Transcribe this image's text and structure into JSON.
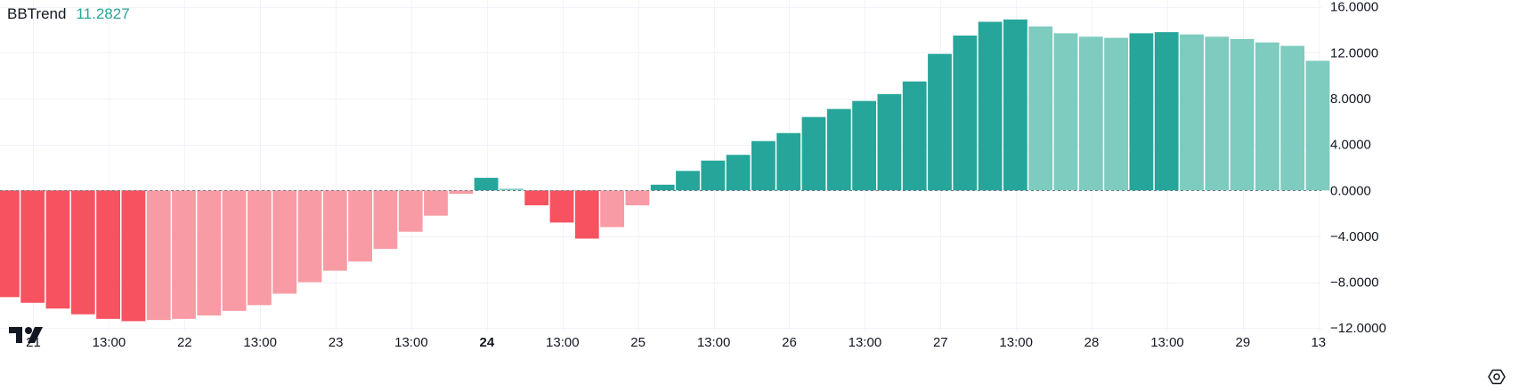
{
  "indicator": {
    "name": "BBTrend",
    "value": "11.2827"
  },
  "colors": {
    "positive_strong": "#26a69a",
    "positive_weak": "#7ecbbf",
    "negative_strong": "#f7525f",
    "negative_weak": "#f99ba4",
    "zero_line": "#787b86",
    "grid": "#f0f3fa",
    "axis_text": "#131722"
  },
  "icons": {
    "logo": "tradingview-logo-icon",
    "settings": "settings-gear-icon"
  },
  "chart_data": {
    "type": "bar",
    "title": "BBTrend",
    "ylim": [
      -14,
      16.6
    ],
    "y_ticks": [
      16,
      12,
      8,
      4,
      0,
      -4,
      -8,
      -12
    ],
    "y_tick_labels": [
      "16.0000",
      "12.0000",
      "8.0000",
      "4.0000",
      "0.0000",
      "−4.0000",
      "−8.0000",
      "−12.0000"
    ],
    "x_tick_labels": [
      {
        "label": "21",
        "bar": 1.5,
        "bold": false
      },
      {
        "label": "13:00",
        "bar": 4.5,
        "bold": false
      },
      {
        "label": "22",
        "bar": 7.5,
        "bold": false
      },
      {
        "label": "13:00",
        "bar": 10.5,
        "bold": false
      },
      {
        "label": "23",
        "bar": 13.5,
        "bold": false
      },
      {
        "label": "13:00",
        "bar": 16.5,
        "bold": false
      },
      {
        "label": "24",
        "bar": 19.5,
        "bold": true
      },
      {
        "label": "13:00",
        "bar": 22.5,
        "bold": false
      },
      {
        "label": "25",
        "bar": 25.5,
        "bold": false
      },
      {
        "label": "13:00",
        "bar": 28.5,
        "bold": false
      },
      {
        "label": "26",
        "bar": 31.5,
        "bold": false
      },
      {
        "label": "13:00",
        "bar": 34.5,
        "bold": false
      },
      {
        "label": "27",
        "bar": 37.5,
        "bold": false
      },
      {
        "label": "13:00",
        "bar": 40.5,
        "bold": false
      },
      {
        "label": "28",
        "bar": 43.5,
        "bold": false
      },
      {
        "label": "13:00",
        "bar": 46.5,
        "bold": false
      },
      {
        "label": "29",
        "bar": 49.5,
        "bold": false
      },
      {
        "label": "13",
        "bar": 52.5,
        "bold": false
      }
    ],
    "values": [
      -9.3,
      -9.8,
      -10.3,
      -10.8,
      -11.2,
      -11.4,
      -11.3,
      -11.2,
      -10.9,
      -10.5,
      -10.0,
      -9.0,
      -8.0,
      -7.0,
      -6.2,
      -5.1,
      -3.6,
      -2.2,
      -0.3,
      1.1,
      0.15,
      -1.3,
      -2.8,
      -4.2,
      -3.2,
      -1.3,
      0.5,
      1.7,
      2.6,
      3.1,
      4.3,
      5.0,
      6.4,
      7.1,
      7.8,
      8.4,
      9.5,
      11.9,
      13.5,
      14.7,
      14.9,
      14.3,
      13.7,
      13.4,
      13.3,
      13.7,
      13.8,
      13.6,
      13.4,
      13.2,
      12.9,
      12.6,
      11.3
    ],
    "shades": [
      "strong",
      "strong",
      "strong",
      "strong",
      "strong",
      "strong",
      "weak",
      "weak",
      "weak",
      "weak",
      "weak",
      "weak",
      "weak",
      "weak",
      "weak",
      "weak",
      "weak",
      "weak",
      "weak",
      "strong",
      "weak",
      "strong",
      "strong",
      "strong",
      "weak",
      "weak",
      "strong",
      "strong",
      "strong",
      "strong",
      "strong",
      "strong",
      "strong",
      "strong",
      "strong",
      "strong",
      "strong",
      "strong",
      "strong",
      "strong",
      "strong",
      "weak",
      "weak",
      "weak",
      "weak",
      "strong",
      "strong",
      "weak",
      "weak",
      "weak",
      "weak",
      "weak",
      "weak"
    ],
    "grid": true,
    "zero_line": "dashed",
    "legend": "top-left"
  }
}
